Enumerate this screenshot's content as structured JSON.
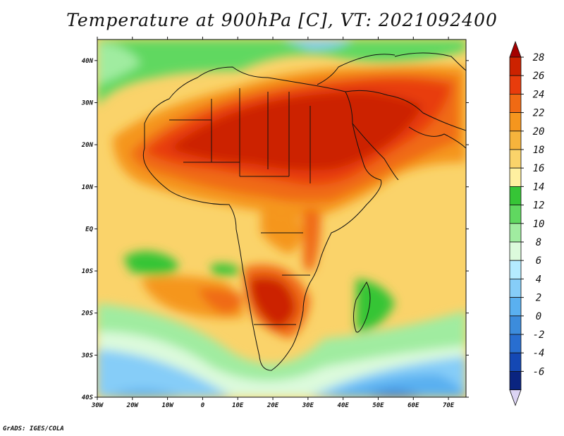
{
  "title": "Temperature at 900hPa [C], VT: 2021092400",
  "credit": "GrADS: IGES/COLA",
  "map": {
    "lon_range": [
      -30,
      75
    ],
    "lat_range": [
      -40,
      45
    ],
    "lon_labels": [
      "30W",
      "20W",
      "10W",
      "0",
      "10E",
      "20E",
      "30E",
      "40E",
      "50E",
      "60E",
      "70E"
    ],
    "lat_labels": [
      "40N",
      "30N",
      "20N",
      "10N",
      "EQ",
      "10S",
      "20S",
      "30S",
      "40S"
    ]
  },
  "colorbar": {
    "labels": [
      "28",
      "26",
      "24",
      "22",
      "20",
      "18",
      "16",
      "14",
      "12",
      "10",
      "8",
      "6",
      "4",
      "2",
      "0",
      "-2",
      "-4",
      "-6"
    ],
    "colors": [
      "#cc2200",
      "#e83c0c",
      "#f06a14",
      "#f5961e",
      "#f6b43c",
      "#fad36a",
      "#fff0a0",
      "#36c536",
      "#60d860",
      "#a0eca0",
      "#dcfadc",
      "#b4ebff",
      "#86cdf8",
      "#5ab0f0",
      "#3c8cdc",
      "#286ed0",
      "#1448b4",
      "#0a2480"
    ],
    "top_arrow_color": "#a40000",
    "bottom_arrow_color": "#dcd4f4"
  }
}
